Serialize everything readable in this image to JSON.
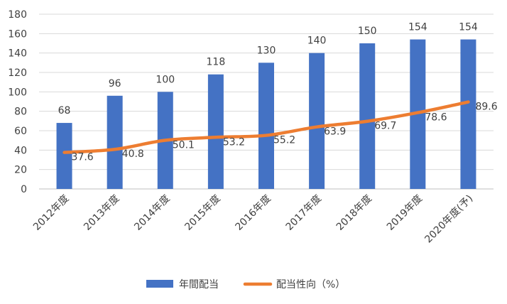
{
  "chart_data": {
    "type": "bar",
    "categories": [
      "2012年度",
      "2013年度",
      "2014年度",
      "2015年度",
      "2016年度",
      "2017年度",
      "2018年度",
      "2019年度",
      "2020年度(予)"
    ],
    "series": [
      {
        "name": "年間配当",
        "type": "bar",
        "color": "#4472C4",
        "values": [
          68,
          96,
          100,
          118,
          130,
          140,
          150,
          154,
          154
        ]
      },
      {
        "name": "配当性向（%）",
        "type": "line",
        "color": "#ED7D31",
        "values": [
          37.6,
          40.8,
          50.1,
          53.2,
          55.2,
          63.9,
          69.7,
          78.6,
          89.6
        ]
      }
    ],
    "yticks": [
      "0",
      "20",
      "40",
      "60",
      "80",
      "100",
      "120",
      "140",
      "160",
      "180"
    ],
    "ylim": [
      0,
      180
    ],
    "grid": true,
    "legend": "bottom"
  }
}
